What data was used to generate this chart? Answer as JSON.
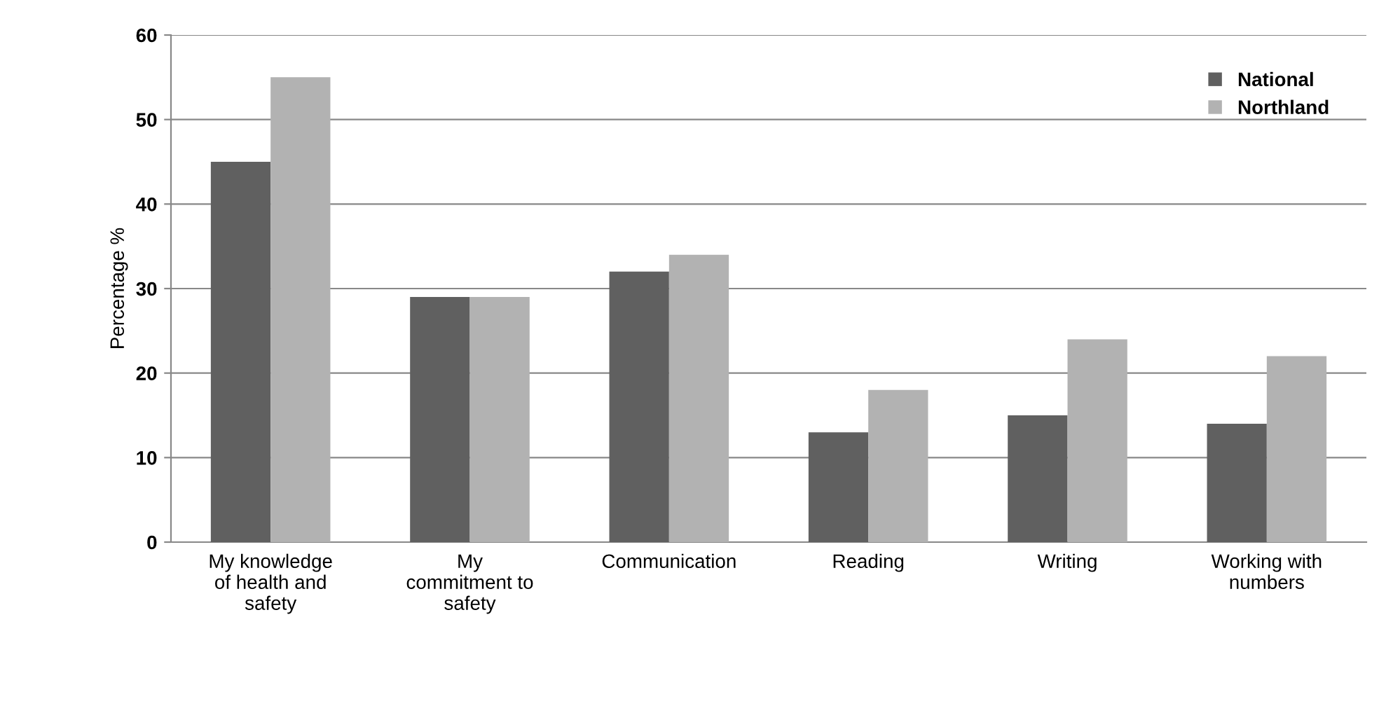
{
  "chart_data": {
    "type": "bar",
    "ylabel": "Percentage %",
    "categories": [
      "My knowledge\nof health and\nsafety",
      "My\ncommitment to\nsafety",
      "Communication",
      "Reading",
      "Writing",
      "Working with\nnumbers"
    ],
    "series": [
      {
        "name": "National",
        "color": "#606060",
        "values": [
          45,
          29,
          32,
          13,
          15,
          14
        ]
      },
      {
        "name": "Northland",
        "color": "#b2b2b2",
        "values": [
          55,
          29,
          34,
          18,
          24,
          22
        ]
      }
    ],
    "ylim": [
      0,
      60
    ],
    "yticks": [
      0,
      10,
      20,
      30,
      40,
      50,
      60
    ],
    "grid": "y",
    "legend": "top right"
  }
}
